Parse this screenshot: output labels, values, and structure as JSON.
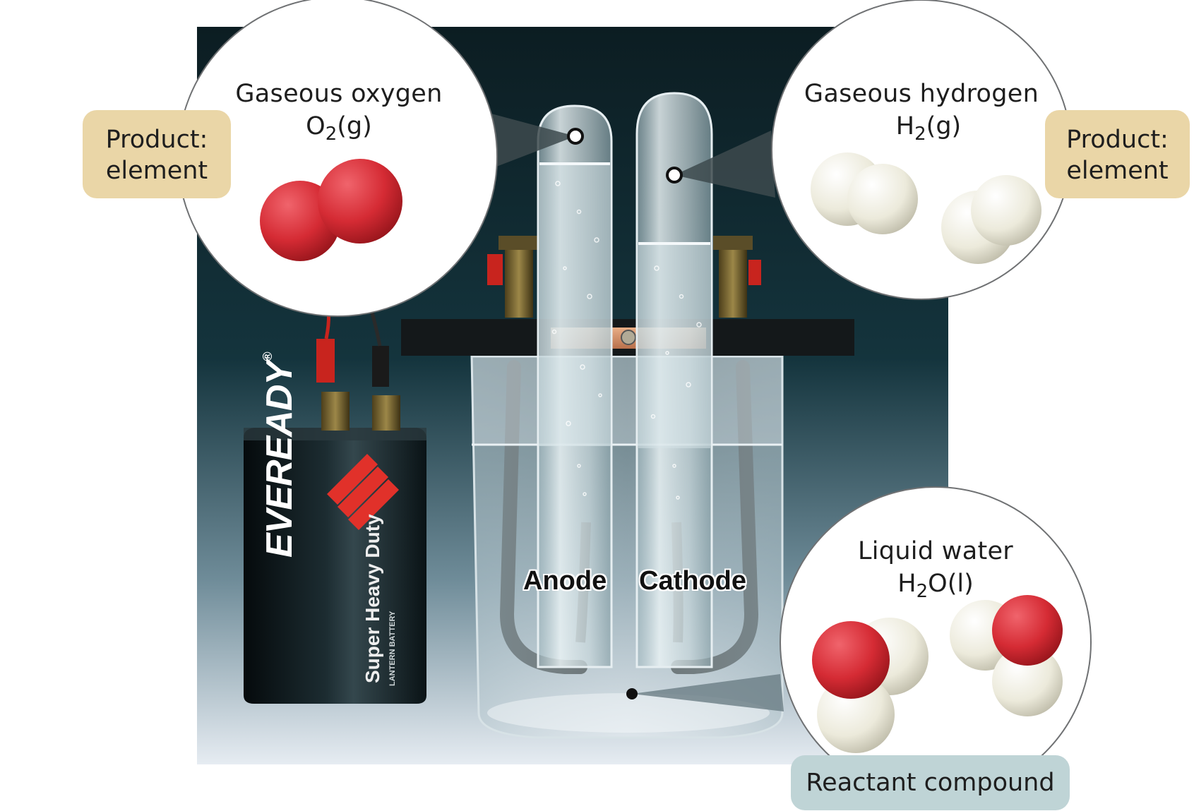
{
  "oxygen": {
    "title": "Gaseous oxygen",
    "symbol": "O",
    "subscript": "2",
    "state": "(g)",
    "tag_line1": "Product:",
    "tag_line2": "element",
    "molecule_icon": "oxygen-molecule-icon"
  },
  "hydrogen": {
    "title": "Gaseous hydrogen",
    "symbol": "H",
    "subscript": "2",
    "state": "(g)",
    "tag_line1": "Product:",
    "tag_line2": "element",
    "molecule_icon": "hydrogen-molecule-icon"
  },
  "water": {
    "title": "Liquid water",
    "symbol": "H",
    "subscript": "2",
    "rest": "O(l)",
    "tag": "Reactant compound",
    "molecule_icon": "water-molecule-icon"
  },
  "electrodes": {
    "anode": "Anode",
    "cathode": "Cathode"
  },
  "battery": {
    "brand": "EVEREADY",
    "registered": "®",
    "line1": "Super Heavy Duty",
    "line2": "LANTERN BATTERY"
  },
  "colors": {
    "oxygen_atom": "#d52b34",
    "hydrogen_atom": "#eceadb",
    "product_tag": "#ead6a7",
    "reactant_tag": "#bfd4d6",
    "backdrop_dark": "#0c1d22"
  }
}
